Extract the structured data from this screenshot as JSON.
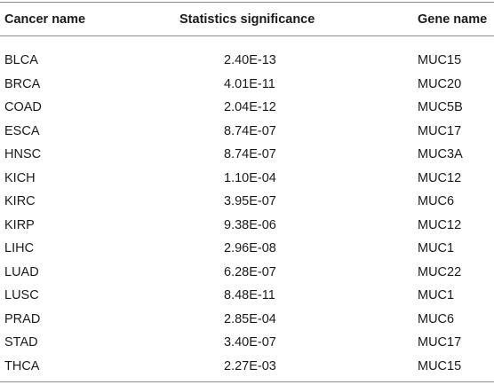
{
  "table": {
    "headers": {
      "cancer": "Cancer name",
      "stat": "Statistics significance",
      "gene": "Gene name"
    },
    "rows": [
      {
        "cancer": "BLCA",
        "stat": "2.40E-13",
        "gene": "MUC15"
      },
      {
        "cancer": "BRCA",
        "stat": "4.01E-11",
        "gene": "MUC20"
      },
      {
        "cancer": "COAD",
        "stat": "2.04E-12",
        "gene": "MUC5B"
      },
      {
        "cancer": "ESCA",
        "stat": "8.74E-07",
        "gene": "MUC17"
      },
      {
        "cancer": "HNSC",
        "stat": "8.74E-07",
        "gene": "MUC3A"
      },
      {
        "cancer": "KICH",
        "stat": "1.10E-04",
        "gene": "MUC12"
      },
      {
        "cancer": "KIRC",
        "stat": "3.95E-07",
        "gene": "MUC6"
      },
      {
        "cancer": "KIRP",
        "stat": "9.38E-06",
        "gene": "MUC12"
      },
      {
        "cancer": "LIHC",
        "stat": "2.96E-08",
        "gene": "MUC1"
      },
      {
        "cancer": "LUAD",
        "stat": "6.28E-07",
        "gene": "MUC22"
      },
      {
        "cancer": "LUSC",
        "stat": "8.48E-11",
        "gene": "MUC1"
      },
      {
        "cancer": "PRAD",
        "stat": "2.85E-04",
        "gene": "MUC6"
      },
      {
        "cancer": "STAD",
        "stat": "3.40E-07",
        "gene": "MUC17"
      },
      {
        "cancer": "THCA",
        "stat": "2.27E-03",
        "gene": "MUC15"
      }
    ]
  }
}
